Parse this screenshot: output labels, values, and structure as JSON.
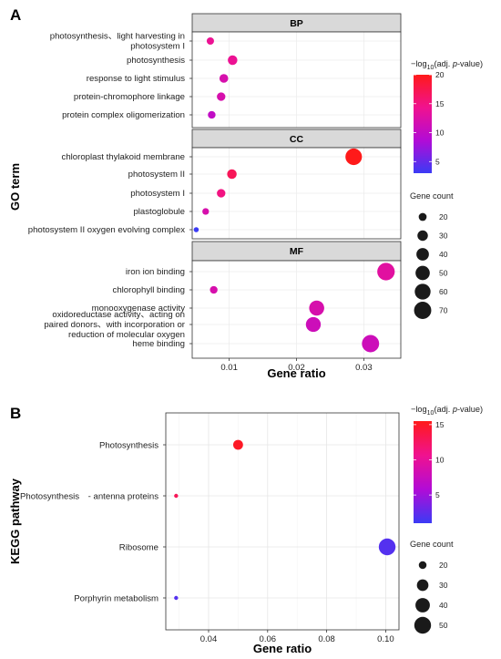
{
  "chart_data": [
    {
      "type": "scatter",
      "panel_label": "A",
      "xlabel": "Gene ratio",
      "ylabel": "GO term",
      "xlim": [
        0.0045,
        0.0355
      ],
      "x_ticks": [
        0.01,
        0.02,
        0.03
      ],
      "x_tick_labels": [
        "0.01",
        "0.02",
        "0.03"
      ],
      "color_legend": {
        "title_prefix": "−log",
        "title_sub": "10",
        "title_open": "(adj. ",
        "title_italic": "p",
        "title_close": "-value)",
        "range": [
          3,
          20
        ],
        "ticks": [
          5,
          10,
          15,
          20
        ],
        "colors": [
          "#3b3bf5",
          "#b20bd6",
          "#f0128f",
          "#ff1a1a"
        ]
      },
      "size_legend": {
        "title": "Gene count",
        "values": [
          20,
          30,
          40,
          50,
          60,
          70
        ]
      },
      "facets": [
        {
          "name": "BP",
          "rows": [
            {
              "term_lines": [
                "photosynthesis、light harvesting in",
                "photosystem I"
              ],
              "x": 0.0072,
              "count": 18,
              "neg_log_p": 14
            },
            {
              "term_lines": [
                "photosynthesis"
              ],
              "x": 0.0105,
              "count": 26,
              "neg_log_p": 14
            },
            {
              "term_lines": [
                "response to light stimulus"
              ],
              "x": 0.0092,
              "count": 23,
              "neg_log_p": 12
            },
            {
              "term_lines": [
                "protein-chromophore linkage"
              ],
              "x": 0.0088,
              "count": 22,
              "neg_log_p": 12
            },
            {
              "term_lines": [
                "protein complex oligomerization"
              ],
              "x": 0.0074,
              "count": 19,
              "neg_log_p": 10
            }
          ]
        },
        {
          "name": "CC",
          "rows": [
            {
              "term_lines": [
                "chloroplast thylakoid membrane"
              ],
              "x": 0.0285,
              "count": 65,
              "neg_log_p": 20
            },
            {
              "term_lines": [
                "photosystem II"
              ],
              "x": 0.0104,
              "count": 26,
              "neg_log_p": 17
            },
            {
              "term_lines": [
                "photosystem I"
              ],
              "x": 0.0088,
              "count": 22,
              "neg_log_p": 15
            },
            {
              "term_lines": [
                "plastoglobule"
              ],
              "x": 0.0065,
              "count": 16,
              "neg_log_p": 12
            },
            {
              "term_lines": [
                "photosystem II oxygen evolving complex"
              ],
              "x": 0.0051,
              "count": 12,
              "neg_log_p": 3
            }
          ]
        },
        {
          "name": "MF",
          "rows": [
            {
              "term_lines": [
                "iron ion binding"
              ],
              "x": 0.0333,
              "count": 72,
              "neg_log_p": 13
            },
            {
              "term_lines": [
                "chlorophyll binding"
              ],
              "x": 0.0077,
              "count": 19,
              "neg_log_p": 12
            },
            {
              "term_lines": [
                "monooxygenase activity"
              ],
              "x": 0.023,
              "count": 55,
              "neg_log_p": 12
            },
            {
              "term_lines": [
                "oxidoreductase activity、acting on",
                "paired donors、with incorporation or",
                "reduction of molecular oxygen"
              ],
              "x": 0.0225,
              "count": 54,
              "neg_log_p": 11
            },
            {
              "term_lines": [
                "heme binding"
              ],
              "x": 0.031,
              "count": 70,
              "neg_log_p": 11
            }
          ]
        }
      ]
    },
    {
      "type": "scatter",
      "panel_label": "B",
      "xlabel": "Gene ratio",
      "ylabel": "KEGG pathway",
      "xlim": [
        0.0255,
        0.1045
      ],
      "x_ticks": [
        0.04,
        0.06,
        0.08,
        0.1
      ],
      "x_tick_labels": [
        "0.04",
        "0.06",
        "0.08",
        "0.10"
      ],
      "color_legend": {
        "title_prefix": "−log",
        "title_sub": "10",
        "title_open": "(adj. ",
        "title_italic": "p",
        "title_close": "-value)",
        "range": [
          1,
          15.5
        ],
        "ticks": [
          5,
          10,
          15
        ],
        "colors": [
          "#3b3bf5",
          "#b20bd6",
          "#f0128f",
          "#ff1a1a"
        ]
      },
      "size_legend": {
        "title": "Gene count",
        "values": [
          20,
          30,
          40,
          50
        ]
      },
      "rows": [
        {
          "term_lines": [
            "Photosynthesis"
          ],
          "x": 0.05,
          "count": 25,
          "neg_log_p": 15
        },
        {
          "term_lines": [
            "Photosynthesis　- antenna proteins"
          ],
          "x": 0.029,
          "count": 14,
          "neg_log_p": 13
        },
        {
          "term_lines": [
            "Ribosome"
          ],
          "x": 0.1005,
          "count": 50,
          "neg_log_p": 2
        },
        {
          "term_lines": [
            "Porphyrin metabolism"
          ],
          "x": 0.029,
          "count": 14,
          "neg_log_p": 2
        }
      ]
    }
  ]
}
